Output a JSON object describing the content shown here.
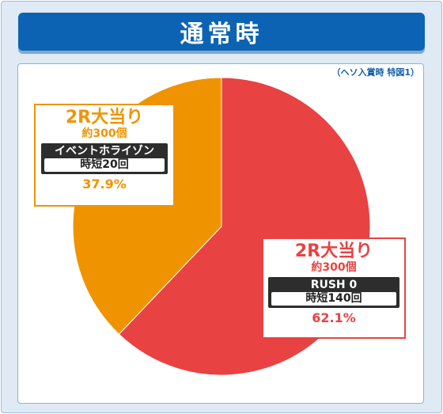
{
  "header": {
    "title": "通常時"
  },
  "note": "（ヘソ入賞時 特図1）",
  "colors": {
    "red": "#e84342",
    "orange": "#ef9400",
    "header_blue": "#0c63b3"
  },
  "chart_data": {
    "type": "pie",
    "title": "通常時",
    "slices": [
      {
        "label": "2R大当り 約300個 RUSH 0 時短140回",
        "value": 62.1,
        "color": "#e84342"
      },
      {
        "label": "2R大当り 約300個 イベントホライゾン 時短20回",
        "value": 37.9,
        "color": "#ef9400"
      }
    ]
  },
  "callouts": {
    "left": {
      "title": "2R大当り",
      "sub": "約300個",
      "mode": "イベントホライゾン",
      "jitan": "時短20回",
      "pct": "37.9%"
    },
    "right": {
      "title": "2R大当り",
      "sub": "約300個",
      "mode": "RUSH 0",
      "jitan": "時短140回",
      "pct": "62.1%"
    }
  }
}
